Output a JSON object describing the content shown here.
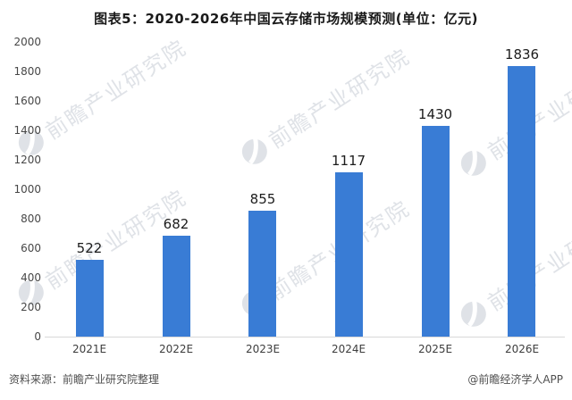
{
  "title": "图表5：2020-2026年中国云存储市场规模预测(单位：亿元)",
  "chart_data": {
    "type": "bar",
    "title": "图表5：2020-2026年中国云存储市场规模预测(单位：亿元)",
    "unit": "亿元",
    "categories": [
      "2021E",
      "2022E",
      "2023E",
      "2024E",
      "2025E",
      "2026E"
    ],
    "values": [
      522,
      682,
      855,
      1117,
      1430,
      1836
    ],
    "ylim": [
      0,
      2000
    ],
    "yticks": [
      0,
      200,
      400,
      600,
      800,
      1000,
      1200,
      1400,
      1600,
      1800,
      2000
    ],
    "grid": false,
    "legend": false,
    "data_labels": true,
    "bar_color": "#397cd5",
    "axis_line_color": "#d9d9d9"
  },
  "watermark": {
    "text": "前瞻产业研究院",
    "icon": "globe-icon"
  },
  "footer": {
    "source": "资料来源：前瞻产业研究院整理",
    "credit": "@前瞻经济学人APP"
  }
}
